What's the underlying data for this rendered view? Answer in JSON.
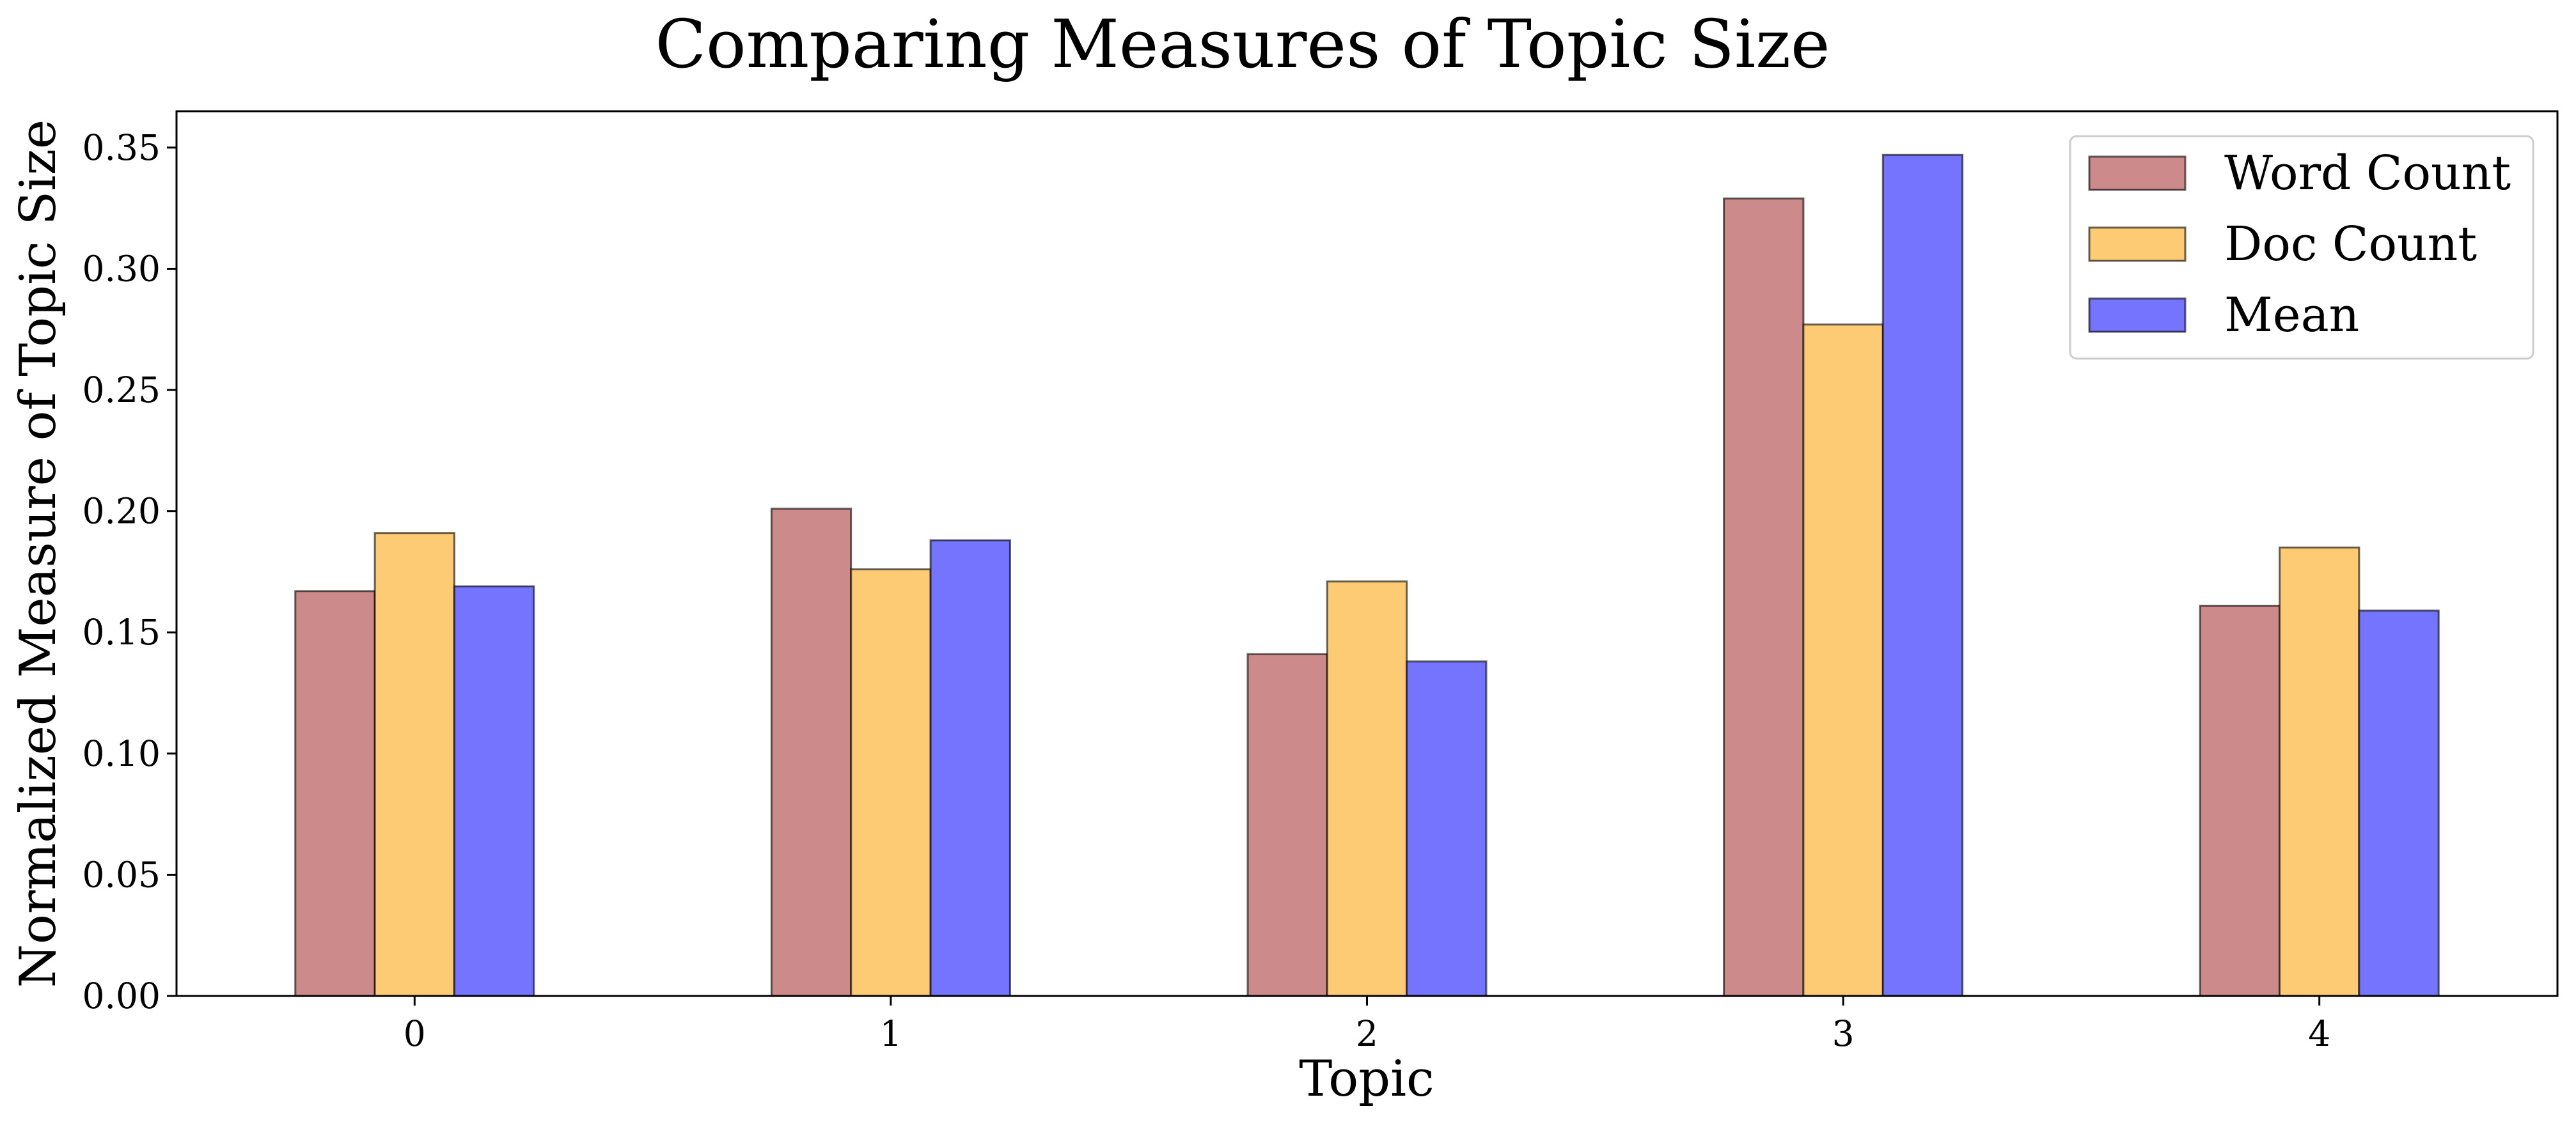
{
  "chart_data": {
    "type": "bar",
    "title": "Comparing Measures of Topic Size",
    "xlabel": "Topic",
    "ylabel": "Normalized Measure of Topic Size",
    "categories": [
      "0",
      "1",
      "2",
      "3",
      "4"
    ],
    "series": [
      {
        "name": "Word Count",
        "color": "#cd8a8a",
        "values": [
          0.167,
          0.201,
          0.141,
          0.329,
          0.161
        ]
      },
      {
        "name": "Doc Count",
        "color": "#fdcb74",
        "values": [
          0.191,
          0.176,
          0.171,
          0.277,
          0.185
        ]
      },
      {
        "name": "Mean",
        "color": "#7474fe",
        "values": [
          0.169,
          0.188,
          0.138,
          0.347,
          0.159
        ]
      }
    ],
    "ylim": [
      0,
      0.365
    ],
    "yticks": [
      "0.00",
      "0.05",
      "0.10",
      "0.15",
      "0.20",
      "0.25",
      "0.30",
      "0.35"
    ],
    "grid": false,
    "legend_position": "top-right",
    "bar_edge_color": "#000000"
  }
}
